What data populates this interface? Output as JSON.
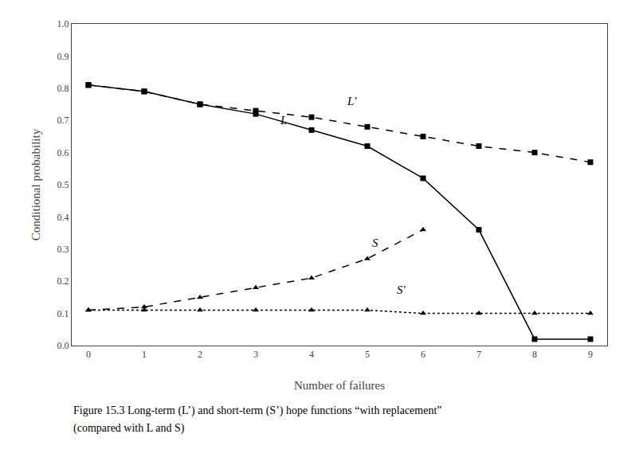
{
  "chart_data": {
    "type": "line",
    "x_label": "Number of failures",
    "y_label": "Conditional probability",
    "x": [
      0,
      1,
      2,
      3,
      4,
      5,
      6,
      7,
      8,
      9
    ],
    "series": [
      {
        "name": "L'",
        "color": "#000000",
        "marker": "square",
        "line_style": "dash",
        "values": [
          0.81,
          0.79,
          0.75,
          0.73,
          0.71,
          0.68,
          0.65,
          0.62,
          0.6,
          0.57
        ]
      },
      {
        "name": "L",
        "color": "#000000",
        "marker": "square",
        "line_style": "solid",
        "values": [
          0.81,
          0.79,
          0.75,
          0.72,
          0.67,
          0.62,
          0.52,
          0.36,
          0.02,
          0.02
        ]
      },
      {
        "name": "S",
        "color": "#000000",
        "marker": "triangle-up",
        "line_style": "dash",
        "values": [
          0.11,
          0.12,
          0.15,
          0.18,
          0.21,
          0.27,
          0.36,
          null,
          null,
          null
        ]
      },
      {
        "name": "S'",
        "color": "#000000",
        "marker": "triangle-up",
        "line_style": "dot",
        "values": [
          0.11,
          0.11,
          0.11,
          0.11,
          0.11,
          0.11,
          0.1,
          0.1,
          0.1,
          0.1
        ]
      }
    ],
    "annotations": [
      {
        "text": "L'",
        "x": 4.6,
        "y": 0.735
      },
      {
        "text": "L",
        "x": 3.4,
        "y": 0.675
      },
      {
        "text": "S",
        "x": 5.05,
        "y": 0.295
      },
      {
        "text": "S'",
        "x": 5.5,
        "y": 0.148
      }
    ],
    "caption": [
      "Figure 15.3 Long-term (L’) and short-term (S’) hope functions “with replacement”",
      "(compared with L and S)"
    ],
    "xlim": [
      -0.3,
      9.3
    ],
    "xticks": [
      0,
      1,
      2,
      3,
      4,
      5,
      6,
      7,
      8,
      9
    ],
    "ylim": [
      0.0,
      1.0
    ],
    "yticks": [
      {
        "value": 0.0,
        "label": "0.0"
      },
      0.1,
      0.2,
      0.3,
      0.4,
      0.5,
      0.6,
      0.7,
      0.8,
      0.9,
      {
        "value": 1.0,
        "label": "1.0"
      }
    ],
    "grid": false
  }
}
